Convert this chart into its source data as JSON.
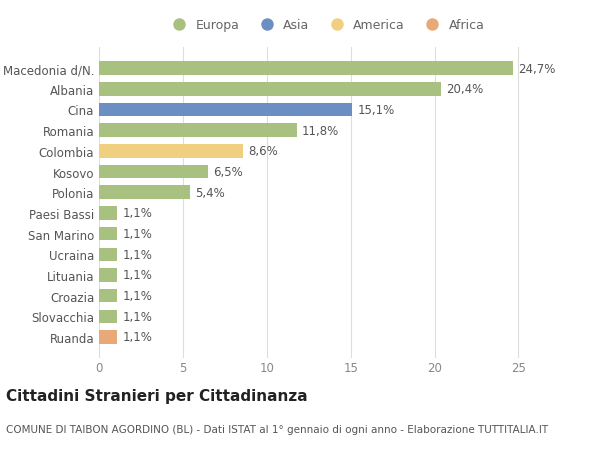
{
  "categories": [
    "Macedonia d/N.",
    "Albania",
    "Cina",
    "Romania",
    "Colombia",
    "Kosovo",
    "Polonia",
    "Paesi Bassi",
    "San Marino",
    "Ucraina",
    "Lituania",
    "Croazia",
    "Slovacchia",
    "Ruanda"
  ],
  "values": [
    24.7,
    20.4,
    15.1,
    11.8,
    8.6,
    6.5,
    5.4,
    1.1,
    1.1,
    1.1,
    1.1,
    1.1,
    1.1,
    1.1
  ],
  "labels": [
    "24,7%",
    "20,4%",
    "15,1%",
    "11,8%",
    "8,6%",
    "6,5%",
    "5,4%",
    "1,1%",
    "1,1%",
    "1,1%",
    "1,1%",
    "1,1%",
    "1,1%",
    "1,1%"
  ],
  "colors": [
    "#a8c080",
    "#a8c080",
    "#6b8fc2",
    "#a8c080",
    "#f0d080",
    "#a8c080",
    "#a8c080",
    "#a8c080",
    "#a8c080",
    "#a8c080",
    "#a8c080",
    "#a8c080",
    "#a8c080",
    "#e8a878"
  ],
  "continent_colors": {
    "Europa": "#a8c080",
    "Asia": "#6b8fc2",
    "America": "#f0d080",
    "Africa": "#e8a878"
  },
  "legend_labels": [
    "Europa",
    "Asia",
    "America",
    "Africa"
  ],
  "title": "Cittadini Stranieri per Cittadinanza",
  "subtitle": "COMUNE DI TAIBON AGORDINO (BL) - Dati ISTAT al 1° gennaio di ogni anno - Elaborazione TUTTITALIA.IT",
  "xlim": [
    0,
    27
  ],
  "xticks": [
    0,
    5,
    10,
    15,
    20,
    25
  ],
  "background_color": "#ffffff",
  "bar_height": 0.65,
  "label_fontsize": 8.5,
  "title_fontsize": 11,
  "subtitle_fontsize": 7.5,
  "tick_fontsize": 8.5,
  "legend_fontsize": 9
}
